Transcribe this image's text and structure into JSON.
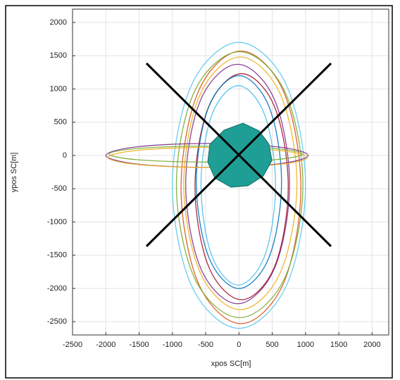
{
  "chart_data": {
    "type": "line",
    "x_label": "xpos SC[m]",
    "y_label": "ypos SC[m]",
    "xlim": [
      -2500,
      2250
    ],
    "ylim": [
      -2700,
      2200
    ],
    "xticks": [
      -2500,
      -2000,
      -1500,
      -1000,
      -500,
      0,
      500,
      1000,
      1500,
      2000
    ],
    "yticks": [
      -2500,
      -2000,
      -1500,
      -1000,
      -500,
      0,
      500,
      1000,
      1500,
      2000
    ],
    "grid": true,
    "series": [
      {
        "color": "#5bc8ef",
        "x": [
          1000,
          707,
          0,
          -707,
          -1000,
          -707,
          0,
          707
        ],
        "values": [
          -450,
          1070,
          1700,
          1070,
          -450,
          -1970,
          -2600,
          -1970
        ]
      },
      {
        "color": "#d95319",
        "x": [
          930,
          666,
          30,
          -606,
          -870,
          -606,
          30,
          666
        ],
        "values": [
          -480,
          970,
          1570,
          970,
          -480,
          -1930,
          -2530,
          -1930
        ]
      },
      {
        "color": "#edb120",
        "x": [
          870,
          621,
          20,
          -581,
          -830,
          -581,
          20,
          621
        ],
        "values": [
          -420,
          923,
          1480,
          923,
          -420,
          -1763,
          -2320,
          -1763
        ]
      },
      {
        "color": "#7e2f8e",
        "x": [
          760,
          532,
          -20,
          -572,
          -800,
          -572,
          -20,
          532
        ],
        "values": [
          -430,
          843,
          1370,
          843,
          -430,
          -1703,
          -2230,
          -1703
        ]
      },
      {
        "color": "#a2142f",
        "x": [
          740,
          535,
          40,
          -455,
          -660,
          -455,
          40,
          535
        ],
        "values": [
          -470,
          732,
          1230,
          732,
          -470,
          -1672,
          -2170,
          -1672
        ]
      },
      {
        "color": "#0072bd",
        "x": [
          640,
          453,
          0,
          -453,
          -640,
          -453,
          0,
          453
        ],
        "values": [
          -400,
          731,
          1200,
          731,
          -400,
          -1531,
          -2000,
          -1531
        ]
      },
      {
        "color": "#77ac30",
        "x": [
          960,
          682,
          10,
          -662,
          -940,
          -662,
          10,
          682
        ],
        "values": [
          -440,
          974,
          1560,
          974,
          -440,
          -1854,
          -2440,
          -1854
        ]
      },
      {
        "color": "#4dbeee",
        "x": [
          550,
          386,
          -10,
          -406,
          -570,
          -406,
          -10,
          386
        ],
        "values": [
          -450,
          611,
          1050,
          611,
          -450,
          -1511,
          -1950,
          -1511
        ]
      },
      {
        "color": "#7e2f8e",
        "x": [
          1040,
          595,
          -480,
          -1555,
          -2000,
          -1555,
          -480,
          595
        ],
        "values": [
          0,
          127,
          180,
          127,
          0,
          -127,
          -180,
          -127
        ]
      },
      {
        "color": "#edb120",
        "x": [
          1030,
          591,
          -470,
          -1531,
          -1970,
          -1531,
          -470,
          591
        ],
        "values": [
          -30,
          76,
          120,
          76,
          -30,
          -136,
          -180,
          -136
        ]
      },
      {
        "color": "#77ac30",
        "x": [
          950,
          525,
          -500,
          -1525,
          -1950,
          -1525,
          -500,
          525
        ],
        "values": [
          20,
          105,
          140,
          105,
          20,
          -65,
          -100,
          -65
        ]
      }
    ]
  }
}
